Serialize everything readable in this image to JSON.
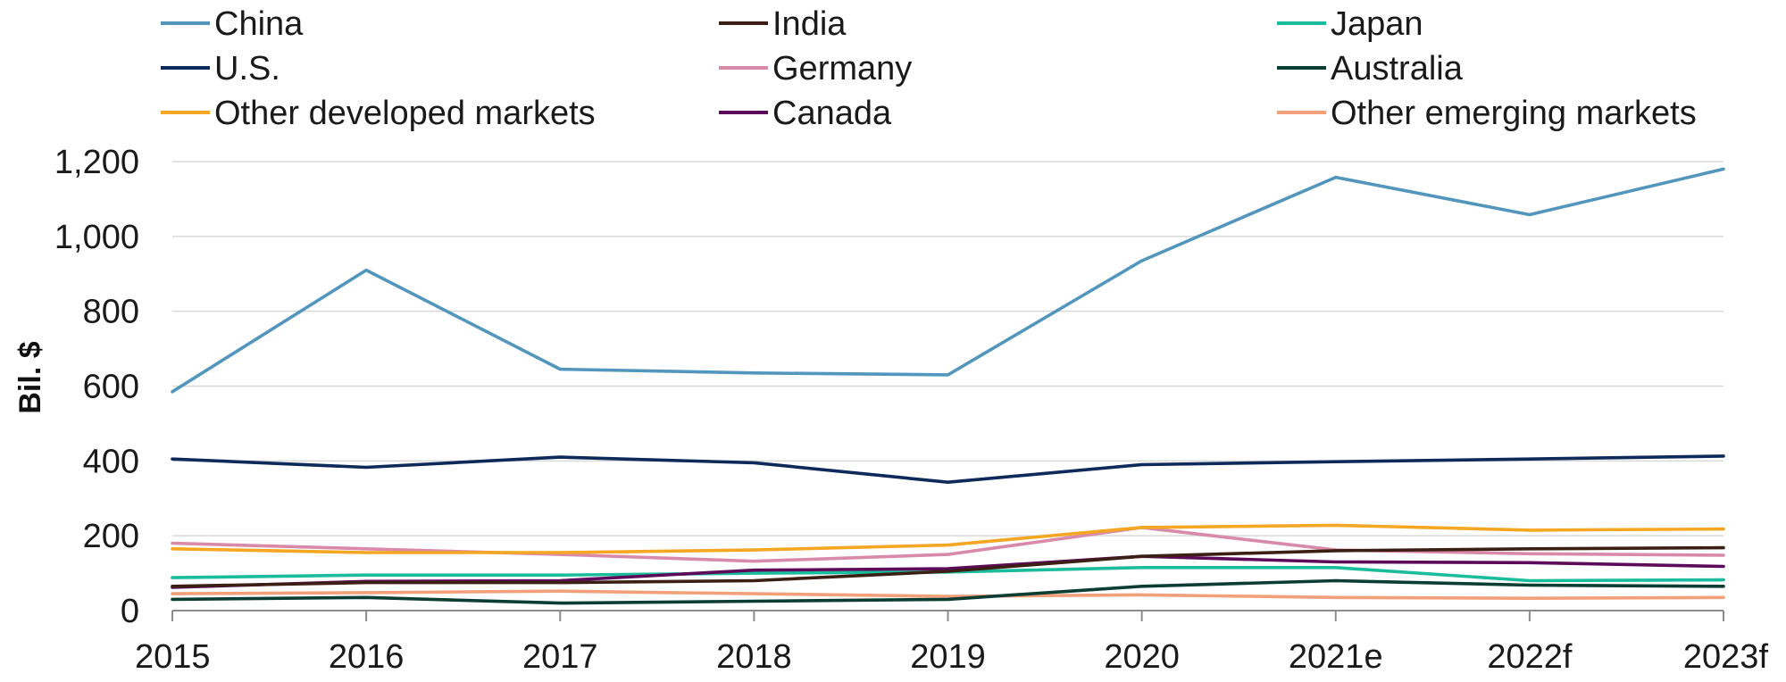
{
  "chart_data": {
    "type": "line",
    "title": "",
    "xlabel": "",
    "ylabel": "Bil. $",
    "categories": [
      "2015",
      "2016",
      "2017",
      "2018",
      "2019",
      "2020",
      "2021e",
      "2022f",
      "2023f"
    ],
    "ylim": [
      0,
      1200
    ],
    "yticks": [
      0,
      200,
      400,
      600,
      800,
      1000,
      1200
    ],
    "ytick_labels": [
      "0",
      "200",
      "400",
      "600",
      "800",
      "1,000",
      "1,200"
    ],
    "grid": true,
    "legend_position": "top",
    "series": [
      {
        "name": "China",
        "color": "#5296BE",
        "values": [
          585,
          910,
          645,
          635,
          630,
          935,
          1158,
          1058,
          1180
        ]
      },
      {
        "name": "U.S.",
        "color": "#0E2A5A",
        "values": [
          405,
          383,
          410,
          395,
          343,
          390,
          398,
          405,
          413
        ]
      },
      {
        "name": "Other developed markets",
        "color": "#F5A623",
        "values": [
          165,
          155,
          155,
          162,
          175,
          222,
          228,
          215,
          218
        ]
      },
      {
        "name": "India",
        "color": "#3B1F14",
        "values": [
          65,
          75,
          75,
          80,
          105,
          145,
          160,
          165,
          168
        ]
      },
      {
        "name": "Germany",
        "color": "#D98AA8",
        "values": [
          180,
          165,
          150,
          132,
          150,
          222,
          162,
          152,
          148
        ]
      },
      {
        "name": "Canada",
        "color": "#5E0A5A",
        "values": [
          62,
          78,
          80,
          108,
          112,
          145,
          130,
          128,
          118
        ]
      },
      {
        "name": "Japan",
        "color": "#1ABC9C",
        "values": [
          88,
          95,
          95,
          100,
          103,
          115,
          115,
          80,
          82
        ]
      },
      {
        "name": "Australia",
        "color": "#0C3D33",
        "values": [
          30,
          35,
          20,
          25,
          30,
          65,
          80,
          68,
          65
        ]
      },
      {
        "name": "Other emerging markets",
        "color": "#F2A07A",
        "values": [
          45,
          48,
          52,
          45,
          38,
          42,
          35,
          33,
          35
        ]
      }
    ]
  }
}
